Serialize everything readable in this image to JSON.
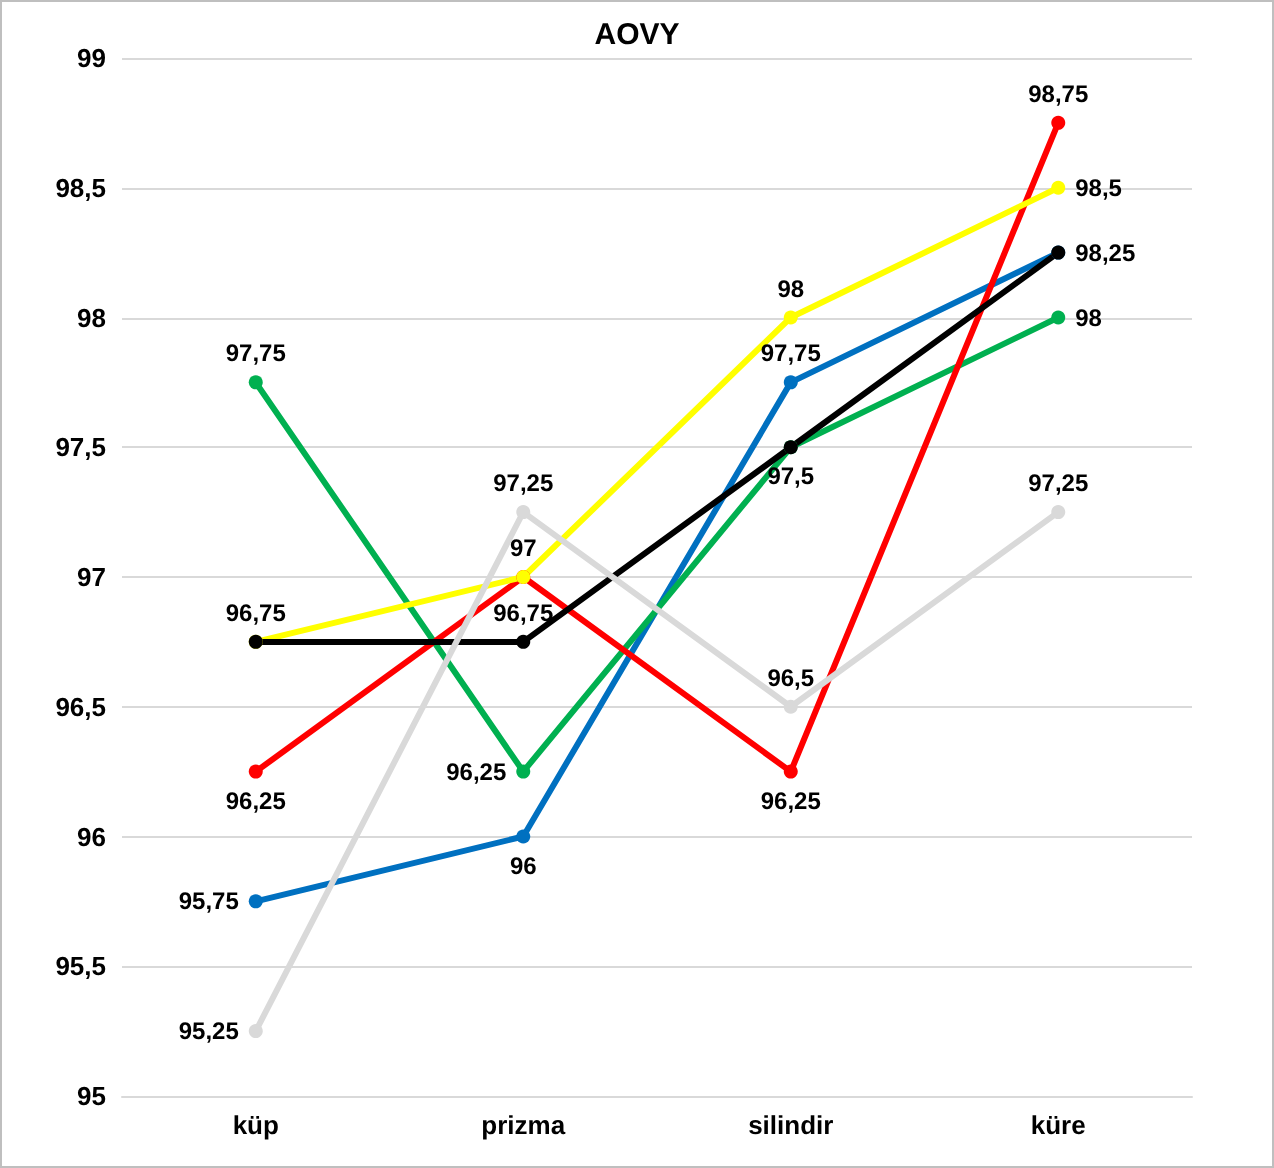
{
  "chart_data": {
    "type": "line",
    "title": "AOVY",
    "categories": [
      "küp",
      "prizma",
      "silindir",
      "küre"
    ],
    "series": [
      {
        "color": "#0070c0",
        "values": [
          95.75,
          96,
          97.75,
          98.25
        ],
        "value_labels": [
          "95,75",
          "96",
          "97,75",
          null
        ]
      },
      {
        "color": "#00b050",
        "values": [
          97.75,
          96.25,
          97.5,
          98
        ],
        "value_labels": [
          "97,75",
          "96,25",
          "97,5",
          "98"
        ]
      },
      {
        "color": "#ff0000",
        "values": [
          96.25,
          97,
          96.25,
          98.75
        ],
        "value_labels": [
          "96,25",
          null,
          "96,25",
          "98,75"
        ]
      },
      {
        "color": "#ffff00",
        "values": [
          96.75,
          97,
          98,
          98.5
        ],
        "value_labels": [
          "96,75",
          "97",
          "98",
          "98,5"
        ]
      },
      {
        "color": "#000000",
        "values": [
          96.75,
          96.75,
          97.5,
          98.25
        ],
        "value_labels": [
          null,
          "96,75",
          null,
          "98,25"
        ]
      },
      {
        "color": "#d9d9d9",
        "values": [
          95.25,
          97.25,
          96.5,
          97.25
        ],
        "value_labels": [
          "95,25",
          "97,25",
          "96,5",
          "97,25"
        ]
      }
    ],
    "ylim": [
      95,
      99
    ],
    "yticks": [
      95,
      {
        "value": 95.5,
        "label": "95,5"
      },
      96,
      {
        "value": 96.5,
        "label": "96,5"
      },
      97,
      {
        "value": 97.5,
        "label": "97,5"
      },
      98,
      {
        "value": 98.5,
        "label": "98,5"
      },
      99
    ],
    "grid": "y",
    "marker": "circle",
    "line_style": "solid"
  }
}
